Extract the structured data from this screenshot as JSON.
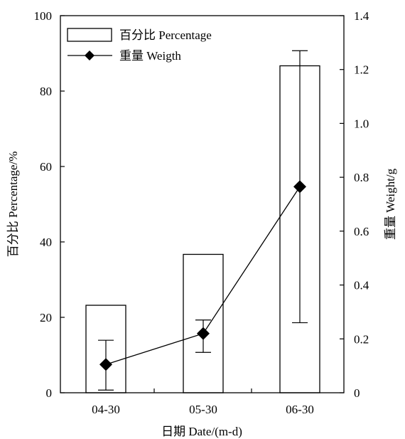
{
  "chart_data": {
    "type": "bar+line",
    "categories": [
      "04-30",
      "05-30",
      "06-30"
    ],
    "series": [
      {
        "name": "百分比 Percentage",
        "kind": "bar",
        "axis": "left",
        "values": [
          23.2,
          36.7,
          86.7
        ]
      },
      {
        "name": "重量 Weigth",
        "kind": "line",
        "marker": "diamond",
        "axis": "right",
        "values": [
          0.105,
          0.22,
          0.765
        ],
        "error_low": [
          0.01,
          0.15,
          0.26
        ],
        "error_high": [
          0.195,
          0.27,
          1.27
        ]
      }
    ],
    "xlabel": "日期  Date/(m-d)",
    "ylabel_left": "百分比 Percentage/%",
    "ylabel_right": "重量 Weight/g",
    "ylim_left": [
      0,
      100
    ],
    "yticks_left": [
      "0",
      "20",
      "40",
      "60",
      "80",
      "100"
    ],
    "ylim_right": [
      0,
      1.4
    ],
    "yticks_right": [
      "0",
      "0.2",
      "0.4",
      "0.6",
      "0.8",
      "1.0",
      "1.2",
      "1.4"
    ],
    "legend_position": "top-left",
    "grid": false,
    "colors": {
      "bar_fill": "#ffffff",
      "bar_stroke": "#000000",
      "line": "#000000",
      "marker": "#000000"
    }
  }
}
